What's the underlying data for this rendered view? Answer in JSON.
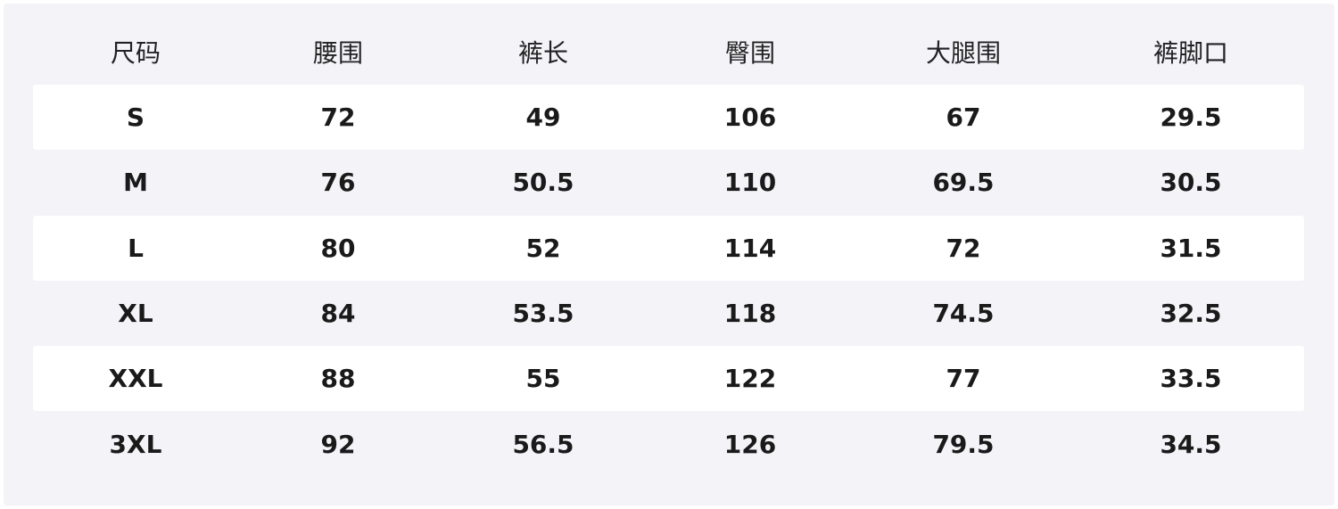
{
  "colors": {
    "background": "#f3f3f8",
    "stripe": "#ffffff",
    "text": "#1a1a1a"
  },
  "table": {
    "headers": [
      "尺码",
      "腰围",
      "裤长",
      "臀围",
      "大腿围",
      "裤脚口"
    ],
    "rows": [
      [
        "S",
        "72",
        "49",
        "106",
        "67",
        "29.5"
      ],
      [
        "M",
        "76",
        "50.5",
        "110",
        "69.5",
        "30.5"
      ],
      [
        "L",
        "80",
        "52",
        "114",
        "72",
        "31.5"
      ],
      [
        "XL",
        "84",
        "53.5",
        "118",
        "74.5",
        "32.5"
      ],
      [
        "XXL",
        "88",
        "55",
        "122",
        "77",
        "33.5"
      ],
      [
        "3XL",
        "92",
        "56.5",
        "126",
        "79.5",
        "34.5"
      ]
    ]
  }
}
